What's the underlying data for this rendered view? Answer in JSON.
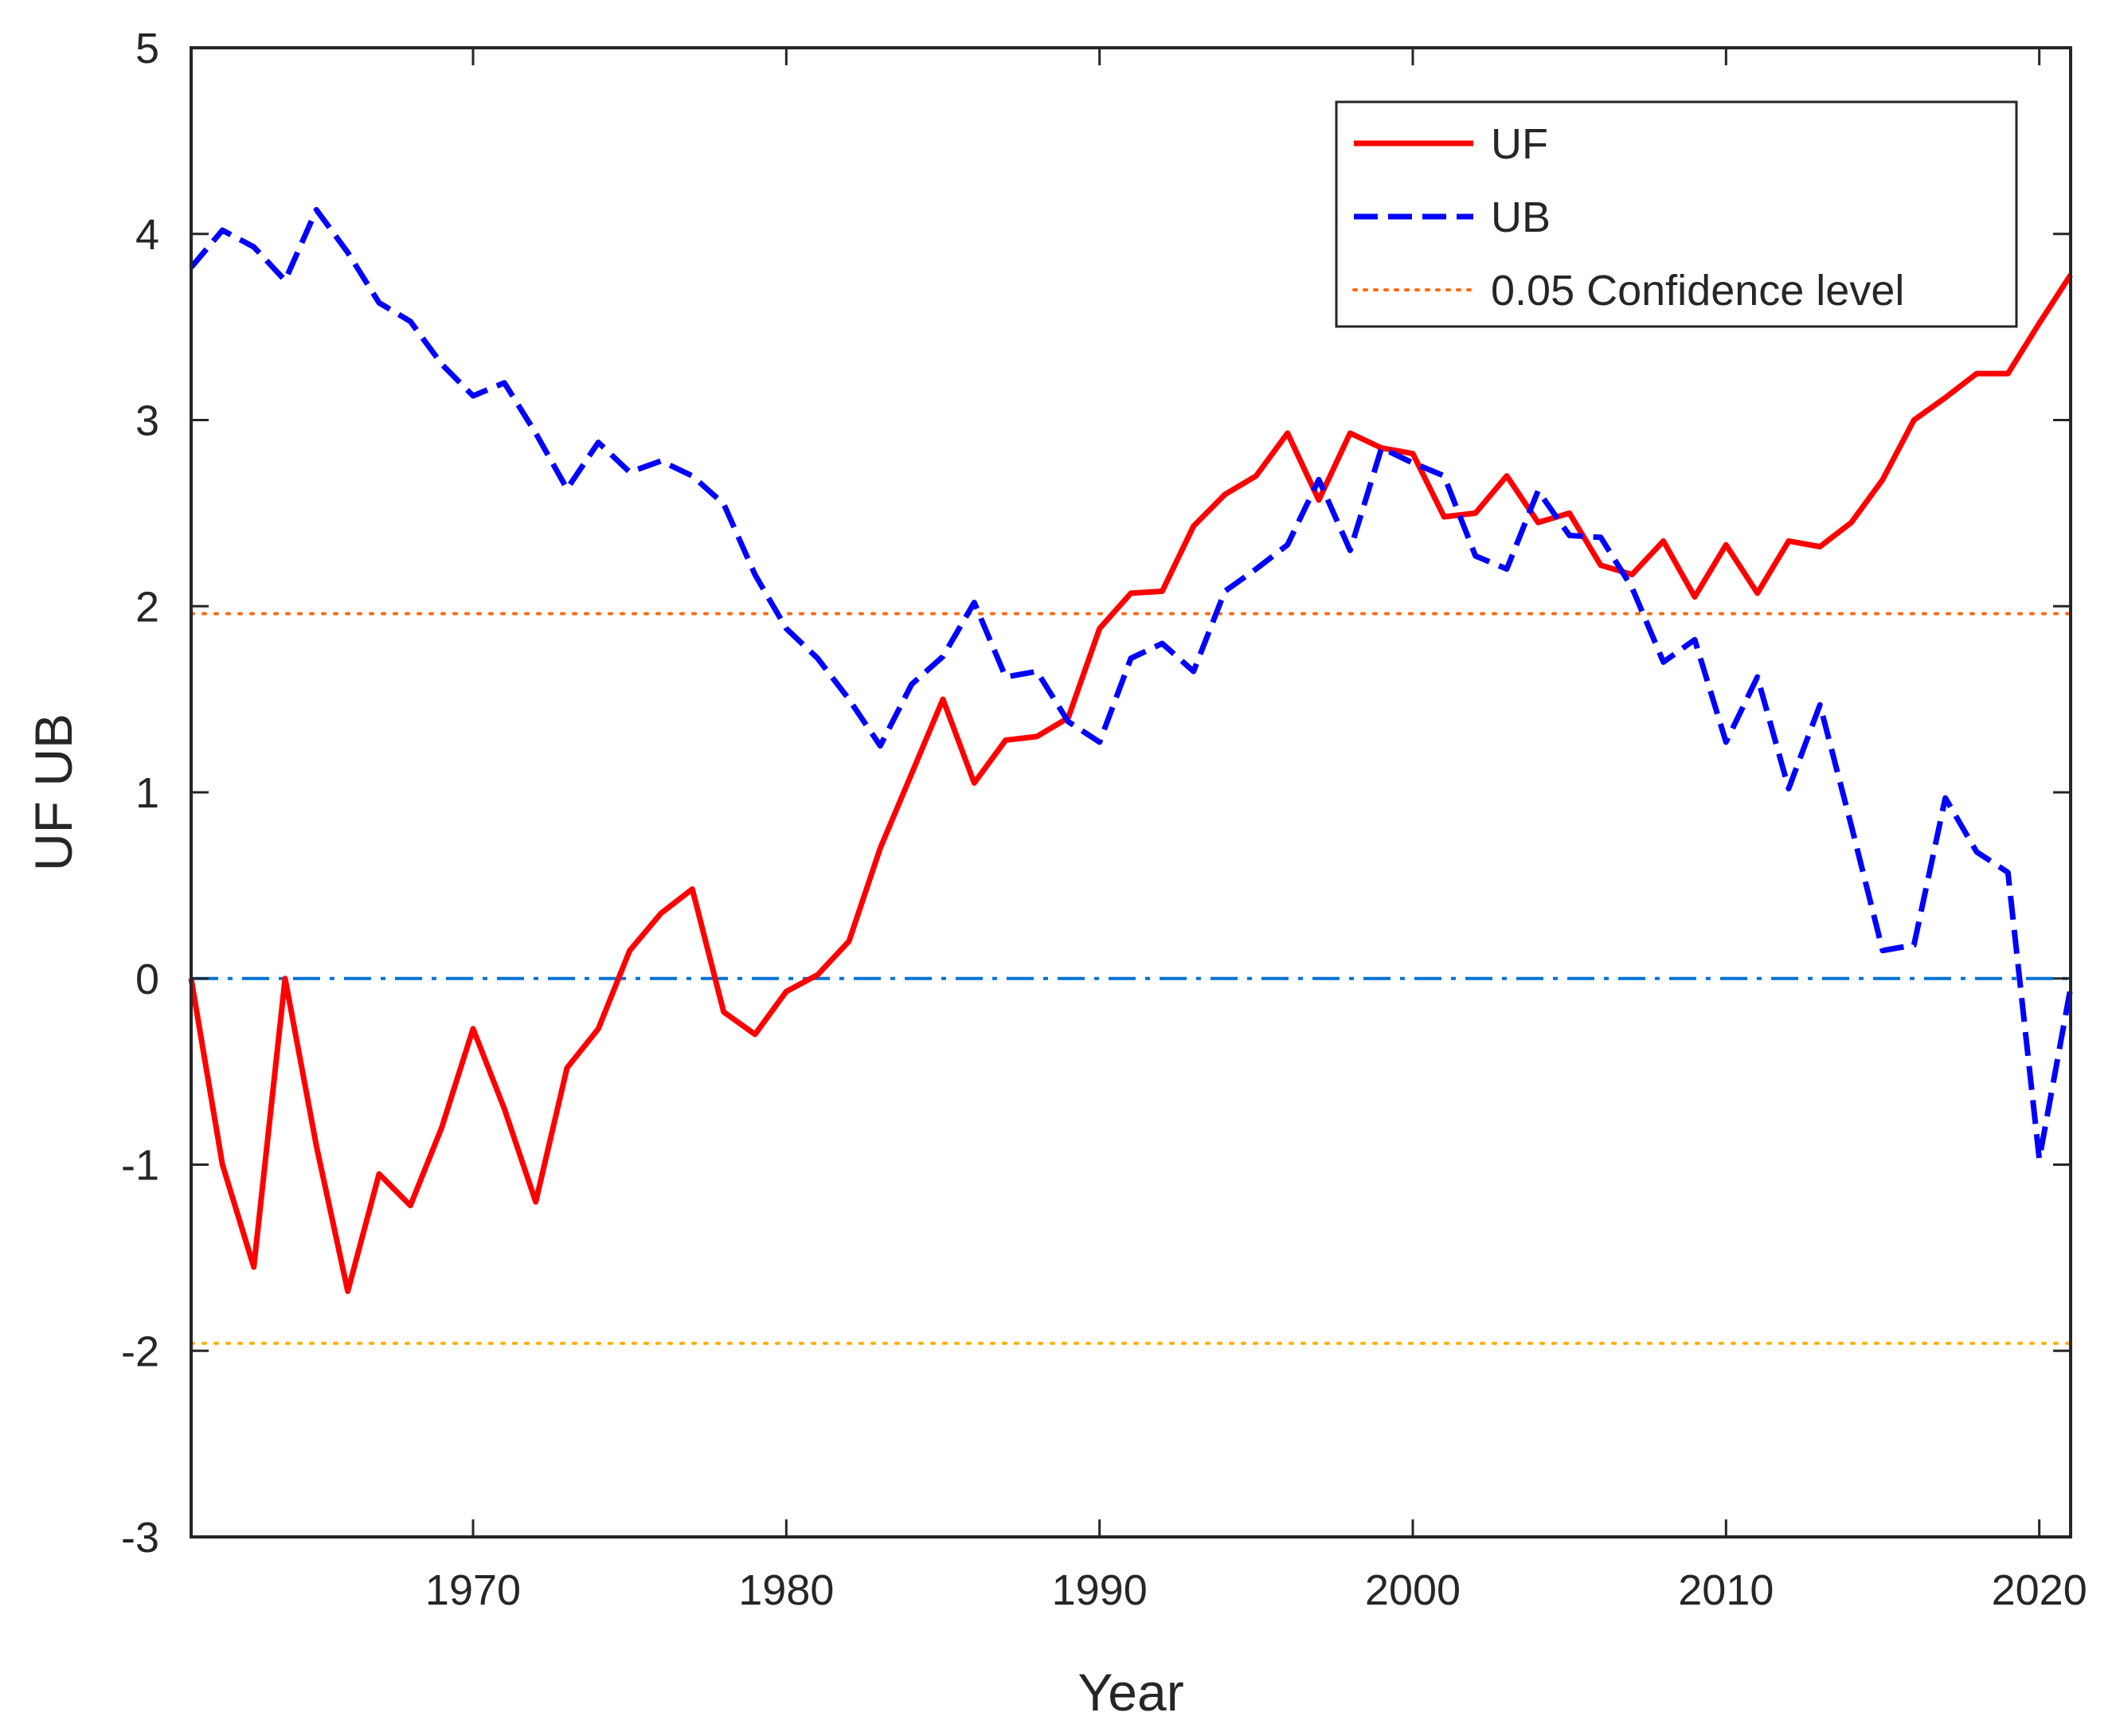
{
  "chart_data": {
    "type": "line",
    "title": "",
    "xlabel": "Year",
    "ylabel": "UF UB",
    "xlim": [
      1961,
      2021
    ],
    "ylim": [
      -3,
      5
    ],
    "xticks": [
      1970,
      1980,
      1990,
      2000,
      2010,
      2020
    ],
    "xtick_labels": [
      "1970",
      "1980",
      "1990",
      "2000",
      "2010",
      "2020"
    ],
    "yticks": [
      -3,
      -2,
      -1,
      0,
      1,
      2,
      3,
      4,
      5
    ],
    "ytick_labels": [
      "-3",
      "-2",
      "-1",
      "0",
      "1",
      "2",
      "3",
      "4",
      "5"
    ],
    "grid": false,
    "legend_position": "top-right",
    "x": [
      1961,
      1962,
      1963,
      1964,
      1965,
      1966,
      1967,
      1968,
      1969,
      1970,
      1971,
      1972,
      1973,
      1974,
      1975,
      1976,
      1977,
      1978,
      1979,
      1980,
      1981,
      1982,
      1983,
      1984,
      1985,
      1986,
      1987,
      1988,
      1989,
      1990,
      1991,
      1992,
      1993,
      1994,
      1995,
      1996,
      1997,
      1998,
      1999,
      2000,
      2001,
      2002,
      2003,
      2004,
      2005,
      2006,
      2007,
      2008,
      2009,
      2010,
      2011,
      2012,
      2013,
      2014,
      2015,
      2016,
      2017,
      2018,
      2019,
      2020,
      2021
    ],
    "series": [
      {
        "name": "UF",
        "color": "#ff0000",
        "style": "solid",
        "values": [
          0,
          -1.0,
          -1.55,
          0,
          -0.9,
          -1.68,
          -1.05,
          -1.22,
          -0.8,
          -0.27,
          -0.7,
          -1.2,
          -0.48,
          -0.27,
          0.15,
          0.35,
          0.48,
          -0.18,
          -0.3,
          -0.07,
          0.02,
          0.2,
          0.7,
          1.1,
          1.5,
          1.05,
          1.28,
          1.3,
          1.4,
          1.88,
          2.07,
          2.08,
          2.43,
          2.6,
          2.7,
          2.93,
          2.57,
          2.93,
          2.85,
          2.82,
          2.48,
          2.5,
          2.7,
          2.45,
          2.5,
          2.22,
          2.17,
          2.35,
          2.05,
          2.33,
          2.07,
          2.35,
          2.32,
          2.45,
          2.68,
          3.0,
          3.12,
          3.25,
          3.25,
          3.52,
          3.78
        ]
      },
      {
        "name": "UB",
        "color": "#0000ff",
        "style": "dashed",
        "values": [
          3.82,
          4.02,
          3.93,
          3.75,
          4.13,
          3.9,
          3.63,
          3.53,
          3.3,
          3.13,
          3.2,
          2.93,
          2.63,
          2.88,
          2.72,
          2.78,
          2.7,
          2.55,
          2.17,
          1.88,
          1.72,
          1.5,
          1.25,
          1.58,
          1.73,
          2.02,
          1.62,
          1.65,
          1.38,
          1.27,
          1.72,
          1.8,
          1.65,
          2.08,
          2.2,
          2.33,
          2.68,
          2.3,
          2.85,
          2.77,
          2.7,
          2.27,
          2.2,
          2.62,
          2.38,
          2.37,
          2.1,
          1.7,
          1.82,
          1.27,
          1.62,
          1.02,
          1.47,
          0.82,
          0.15,
          0.18,
          0.97,
          0.68,
          0.57,
          -0.97,
          -0.05
        ]
      }
    ],
    "reference_lines": [
      {
        "name": "0.05 Confidence level",
        "value": 1.96,
        "color": "#ff6a13",
        "style": "dotted"
      },
      {
        "name": "",
        "value": -1.96,
        "color": "#ffb000",
        "style": "dotted"
      },
      {
        "name": "",
        "value": 0,
        "color": "#0072d6",
        "style": "dashdot"
      }
    ],
    "legend": [
      {
        "label": "UF",
        "color": "#ff0000",
        "style": "solid"
      },
      {
        "label": "UB",
        "color": "#0000ff",
        "style": "dashed"
      },
      {
        "label": "0.05 Confidence level",
        "color": "#ff6a13",
        "style": "dotted"
      }
    ]
  }
}
